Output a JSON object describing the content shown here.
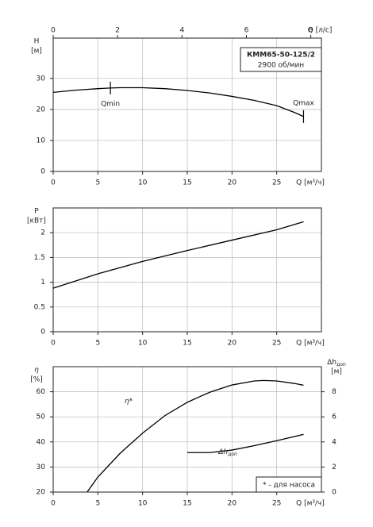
{
  "chart_data": [
    {
      "type": "line",
      "title": "КММ65-50-125/2",
      "subtitle": "2900 об/мин",
      "ylabel": [
        "H",
        "[м]"
      ],
      "xlabel": "Q [м³/ч]",
      "x2label": "Q [л/с]",
      "xlim": [
        0,
        30
      ],
      "xticks": [
        0,
        5,
        10,
        15,
        20,
        25
      ],
      "x2lim": [
        0,
        8.33
      ],
      "x2ticks": [
        0,
        2,
        4,
        6,
        8
      ],
      "ylim": [
        0,
        43
      ],
      "yticks": [
        0,
        10,
        20,
        30
      ],
      "grid": true,
      "series": [
        {
          "color": "#000000",
          "x": [
            0,
            2.5,
            5,
            6.4,
            7.5,
            10,
            12.5,
            15,
            17.5,
            20,
            22.5,
            25,
            27,
            28
          ],
          "values": [
            25.5,
            26.2,
            26.7,
            26.9,
            27.0,
            27.0,
            26.7,
            26.1,
            25.3,
            24.2,
            22.9,
            21.2,
            19.0,
            17.7
          ]
        }
      ],
      "annotations": [
        {
          "text": "Qmin",
          "x": 6.4
        },
        {
          "text": "Qmax",
          "x": 28
        }
      ]
    },
    {
      "type": "line",
      "ylabel": [
        "P",
        "[кВт]"
      ],
      "xlabel": "Q [м³/ч]",
      "xlim": [
        0,
        30
      ],
      "xticks": [
        0,
        5,
        10,
        15,
        20,
        25
      ],
      "ylim": [
        0,
        2.5
      ],
      "yticks": [
        0,
        0.5,
        1,
        1.5,
        2
      ],
      "grid": true,
      "series": [
        {
          "color": "#000000",
          "x": [
            0,
            5,
            10,
            15,
            20,
            25,
            28
          ],
          "values": [
            0.88,
            1.17,
            1.42,
            1.64,
            1.85,
            2.06,
            2.22
          ]
        }
      ]
    },
    {
      "type": "line",
      "ylabel": [
        "η",
        "[%]"
      ],
      "y2label": [
        "Δh",
        "доп",
        "[м]"
      ],
      "xlabel": "Q [м³/ч]",
      "xlim": [
        0,
        30
      ],
      "xticks": [
        0,
        5,
        10,
        15,
        20,
        25
      ],
      "ylim": [
        20,
        70
      ],
      "yticks": [
        20,
        30,
        40,
        50,
        60
      ],
      "y2lim": [
        0,
        10
      ],
      "y2ticks": [
        0,
        2,
        4,
        6,
        8
      ],
      "grid": true,
      "note": "* - для насоса",
      "series": [
        {
          "name": "η*",
          "color": "#000000",
          "x": [
            3.8,
            5,
            7.5,
            10,
            12.5,
            15,
            17.5,
            20,
            22.5,
            23.5,
            25,
            27,
            28
          ],
          "values": [
            20,
            26,
            35.5,
            43.5,
            50.5,
            55.8,
            59.8,
            62.7,
            64.3,
            64.5,
            64.3,
            63.3,
            62.6
          ]
        },
        {
          "name": "Δh",
          "name_sub": "доп",
          "axis": "y2",
          "color": "#000000",
          "x": [
            15,
            17.5,
            20,
            22.5,
            25,
            28
          ],
          "values": [
            3.15,
            3.15,
            3.35,
            3.7,
            4.1,
            4.6
          ]
        }
      ]
    }
  ]
}
